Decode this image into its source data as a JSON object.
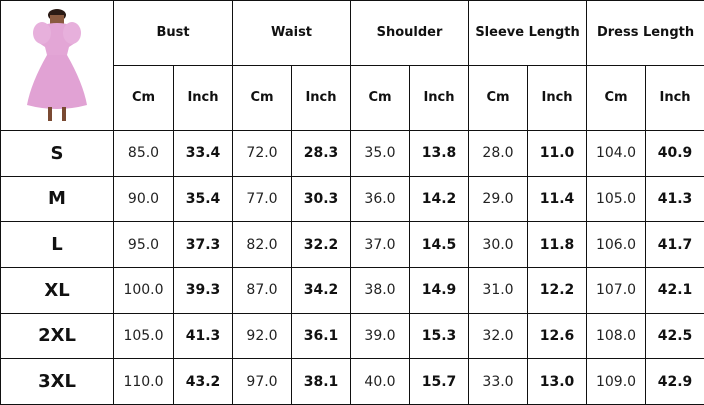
{
  "header": {
    "groups": [
      "Bust",
      "Waist",
      "Shoulder",
      "Sleeve Length",
      "Dress Length"
    ],
    "units": [
      "Cm",
      "Inch"
    ]
  },
  "product_image": "pink-puff-sleeve-dress",
  "rows": [
    {
      "size": "S",
      "values": [
        "85.0",
        "33.4",
        "72.0",
        "28.3",
        "35.0",
        "13.8",
        "28.0",
        "11.0",
        "104.0",
        "40.9"
      ]
    },
    {
      "size": "M",
      "values": [
        "90.0",
        "35.4",
        "77.0",
        "30.3",
        "36.0",
        "14.2",
        "29.0",
        "11.4",
        "105.0",
        "41.3"
      ]
    },
    {
      "size": "L",
      "values": [
        "95.0",
        "37.3",
        "82.0",
        "32.2",
        "37.0",
        "14.5",
        "30.0",
        "11.8",
        "106.0",
        "41.7"
      ]
    },
    {
      "size": "XL",
      "values": [
        "100.0",
        "39.3",
        "87.0",
        "34.2",
        "38.0",
        "14.9",
        "31.0",
        "12.2",
        "107.0",
        "42.1"
      ]
    },
    {
      "size": "2XL",
      "values": [
        "105.0",
        "41.3",
        "92.0",
        "36.1",
        "39.0",
        "15.3",
        "32.0",
        "12.6",
        "108.0",
        "42.5"
      ]
    },
    {
      "size": "3XL",
      "values": [
        "110.0",
        "43.2",
        "97.0",
        "38.1",
        "40.0",
        "15.7",
        "33.0",
        "13.0",
        "109.0",
        "42.9"
      ]
    }
  ]
}
